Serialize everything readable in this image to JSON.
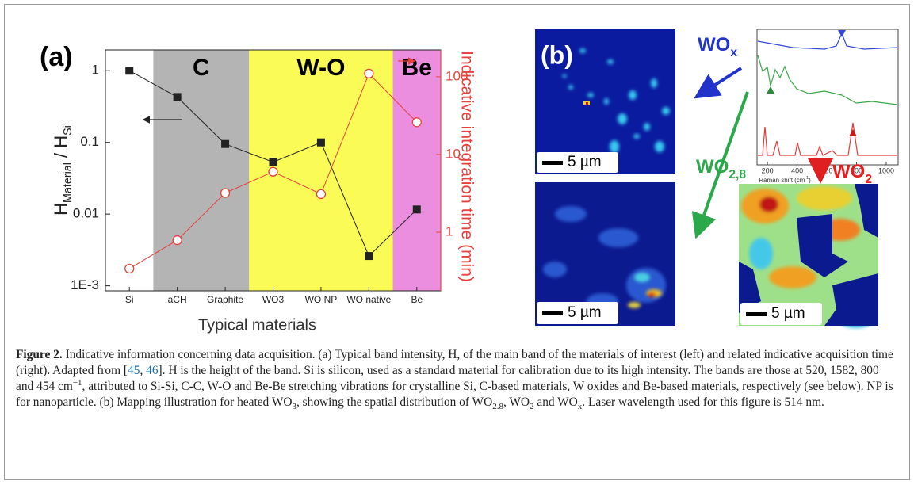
{
  "chart_data": {
    "type": "line",
    "panel_label": "(a)",
    "categories": [
      "Si",
      "aCH",
      "Graphite",
      "WO3",
      "WO NP",
      "WO native",
      "Be"
    ],
    "series": [
      {
        "color": "#222222",
        "marker": "square",
        "values": [
          1,
          0.43,
          0.095,
          0.053,
          0.1,
          0.0026,
          0.0116
        ]
      },
      {
        "color": "#e8413c",
        "marker": "circle",
        "axis": "y2",
        "values": [
          0.34,
          0.79,
          3.2,
          6,
          3.1,
          110,
          26
        ]
      }
    ],
    "log_y": true,
    "ylim": [
      0.00085,
      1.95
    ],
    "yticks": [
      {
        "value": 0.001,
        "label": "1E-3"
      },
      0.01,
      0.1,
      1
    ],
    "y2lim": [
      0.176,
      222
    ],
    "y2ticks": [
      1,
      10,
      100
    ],
    "xlabel": "Typical materials",
    "ylabel": [
      {
        "text": "H"
      },
      {
        "text": "Material",
        "style": "sub"
      },
      {
        "text": " / H"
      },
      {
        "text": "Si",
        "style": "sub"
      }
    ],
    "y2label": "Indicative integration time (min)",
    "regions": [
      {
        "label": "C",
        "categories": [
          "aCH",
          "Graphite"
        ],
        "color": "#b4b4b4"
      },
      {
        "label": "W-O",
        "categories": [
          "WO3",
          "WO native"
        ],
        "color": "#fbfb58"
      },
      {
        "label": "Be",
        "categories": [
          "Be"
        ],
        "color": "#ec8ee0"
      }
    ]
  },
  "panel_b": {
    "panel_label": "(b)",
    "scale_bar": "5 µm",
    "wox": [
      {
        "text": "WO"
      },
      {
        "text": "x",
        "style": "sub"
      }
    ],
    "wo28": [
      {
        "text": "WO"
      },
      {
        "text": "2,8",
        "style": "sub"
      }
    ],
    "wo2": [
      {
        "text": "WO"
      },
      {
        "text": "2",
        "style": "sub"
      }
    ],
    "inset": {
      "xlim": [
        130,
        1080
      ],
      "xticks": [
        200,
        400,
        600,
        800,
        1000
      ],
      "xlabel": [
        {
          "text": "Raman shift (cm"
        },
        {
          "text": "-1",
          "style": "sup"
        },
        {
          "text": ")"
        }
      ]
    }
  },
  "caption": [
    {
      "text": "Figure 2.",
      "style": "bold"
    },
    {
      "text": " Indicative information concerning data acquisition. (a) Typical band intensity, H, of the main band of the materials of interest (left) and related indicative acquisition time (right). Adapted from ["
    },
    {
      "text": "45",
      "style": "link"
    },
    {
      "text": ", "
    },
    {
      "text": "46",
      "style": "link"
    },
    {
      "text": "]. H is the height of the band. Si is silicon, used as a standard material for calibration due to its high intensity. The bands are those at 520, 1582, 800 and 454 cm"
    },
    {
      "text": "−1",
      "style": "sup"
    },
    {
      "text": ", attributed to Si-Si, C-C, W-O and Be-Be stretching vibrations for crystalline Si, C-based materials, W oxides and Be-based materials, respectively (see below). NP is for nanoparticle. (b) Mapping illustration for heated WO"
    },
    {
      "text": "3",
      "style": "sub"
    },
    {
      "text": ", showing the spatial distribution of WO"
    },
    {
      "text": "2.8",
      "style": "sub"
    },
    {
      "text": ", WO"
    },
    {
      "text": "2",
      "style": "sub"
    },
    {
      "text": " and WO"
    },
    {
      "text": "x",
      "style": "sub"
    },
    {
      "text": ". Laser wavelength used for this figure is 514 nm."
    }
  ]
}
